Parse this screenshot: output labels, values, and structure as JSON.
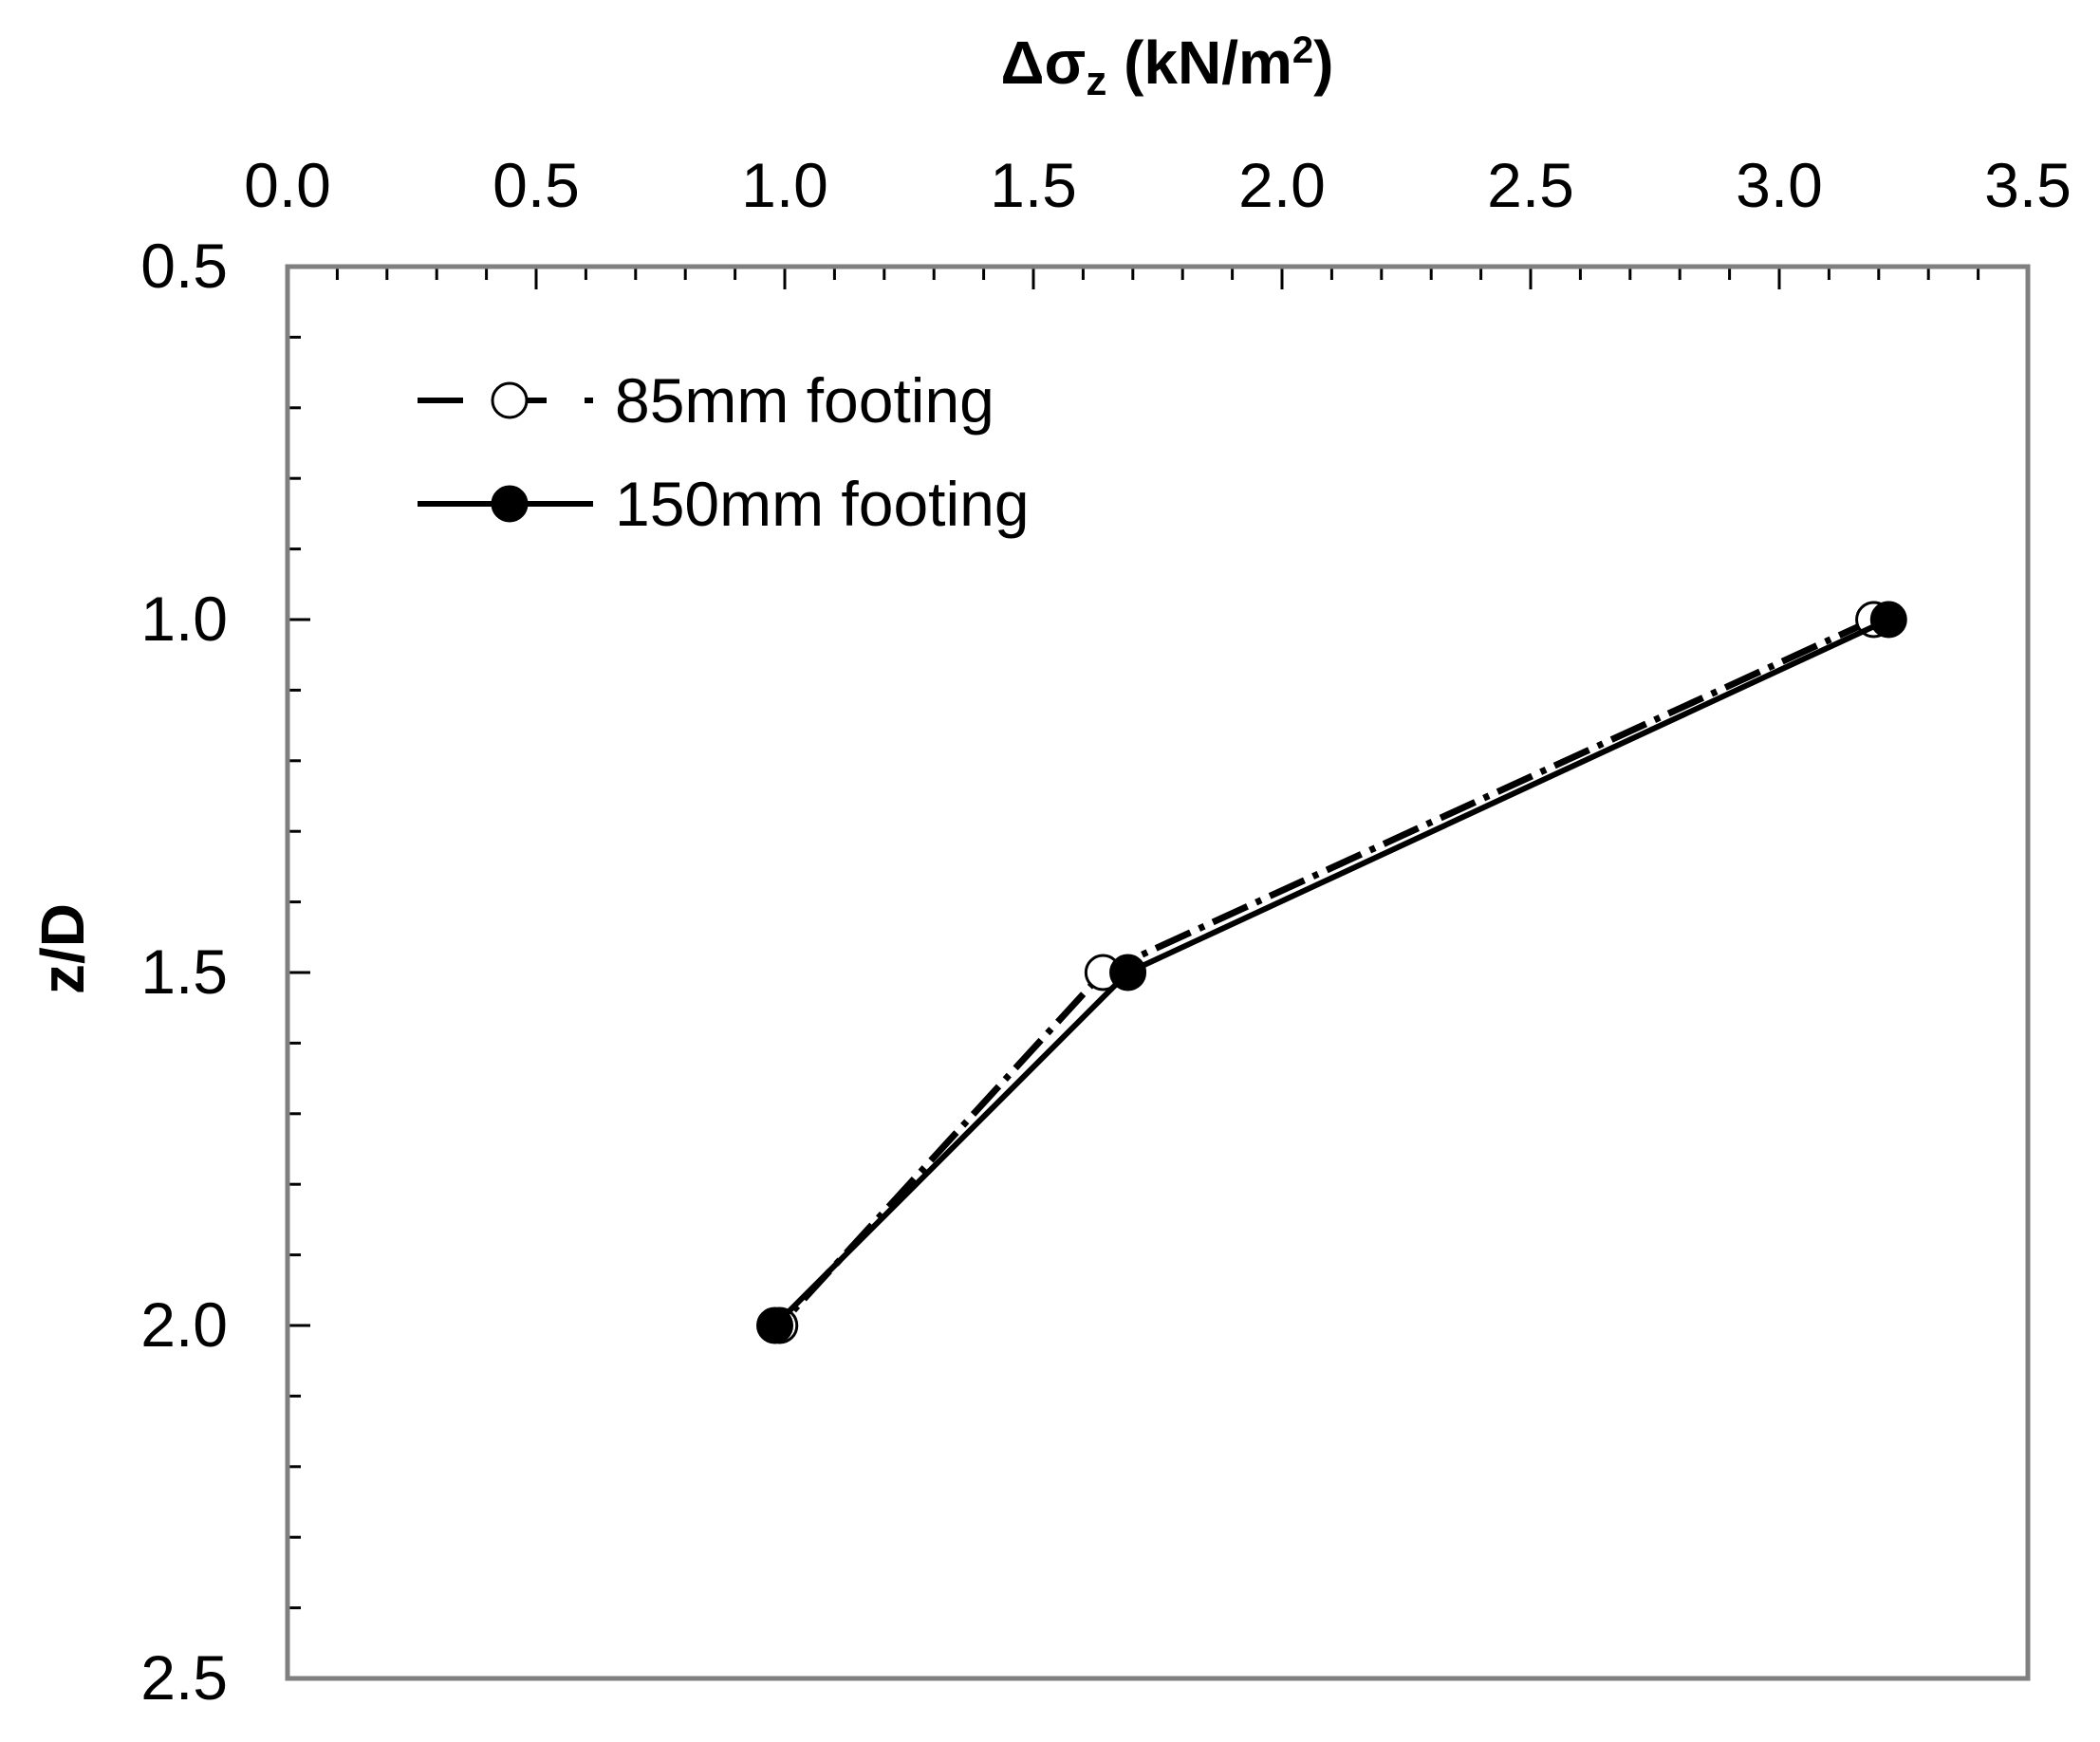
{
  "chart_data": {
    "type": "line",
    "title": "",
    "x_axis": {
      "label_main": "Δσ",
      "label_sub": "z",
      "label_unit_open": " (kN/m",
      "label_unit_sup": "2",
      "label_unit_close": ")",
      "position": "top",
      "range": [
        0.0,
        3.5
      ],
      "major_ticks": [
        "0.0",
        "0.5",
        "1.0",
        "1.5",
        "2.0",
        "2.5",
        "3.0",
        "3.5"
      ],
      "major_values": [
        0.0,
        0.5,
        1.0,
        1.5,
        2.0,
        2.5,
        3.0,
        3.5
      ],
      "minor_step": 0.1
    },
    "y_axis": {
      "label": "z/D",
      "inverted": true,
      "range": [
        0.5,
        2.5
      ],
      "major_ticks": [
        "0.5",
        "1.0",
        "1.5",
        "2.0",
        "2.5"
      ],
      "major_values": [
        0.5,
        1.0,
        1.5,
        2.0,
        2.5
      ],
      "minor_step": 0.1
    },
    "grid": false,
    "legend_position": "top-left",
    "series": [
      {
        "name": "85mm footing",
        "marker": "open-circle",
        "line_style": "dash-dot",
        "color": "#000000",
        "points": [
          {
            "x": 3.19,
            "y": 1.0
          },
          {
            "x": 1.64,
            "y": 1.5
          },
          {
            "x": 0.99,
            "y": 2.0
          }
        ]
      },
      {
        "name": "150mm footing",
        "marker": "filled-circle",
        "line_style": "solid",
        "color": "#000000",
        "points": [
          {
            "x": 3.22,
            "y": 1.0
          },
          {
            "x": 1.69,
            "y": 1.5
          },
          {
            "x": 0.98,
            "y": 2.0
          }
        ]
      }
    ]
  }
}
